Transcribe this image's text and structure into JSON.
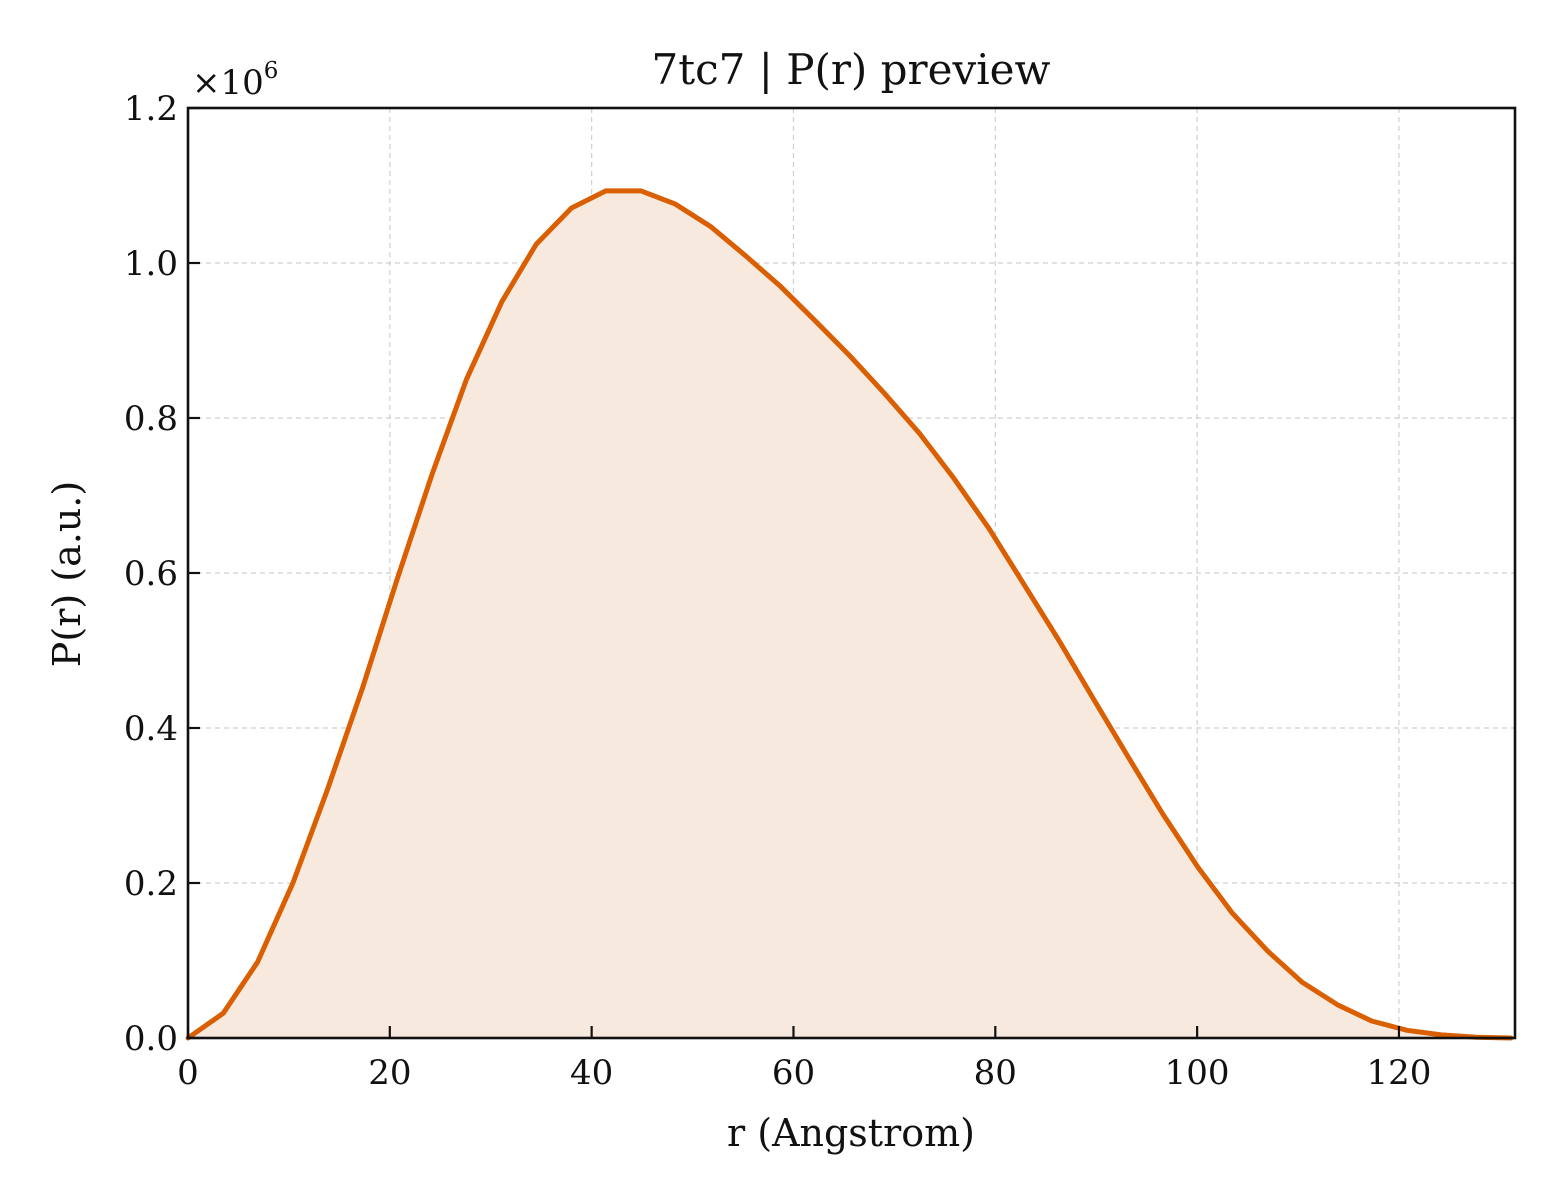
{
  "chart_data": {
    "type": "area",
    "title": "7tc7 | P(r) preview",
    "xlabel": "r (Angstrom)",
    "ylabel": "P(r) (a.u.)",
    "y_multiplier_label": "×10",
    "y_multiplier_exponent": "6",
    "xlim": [
      0,
      131.5
    ],
    "ylim": [
      0,
      1.2
    ],
    "x_ticks": [
      0,
      20,
      40,
      60,
      80,
      100,
      120
    ],
    "x_tick_labels": [
      "0",
      "20",
      "40",
      "60",
      "80",
      "100",
      "120"
    ],
    "y_ticks": [
      0,
      0.2,
      0.4,
      0.6,
      0.8,
      1.0,
      1.2
    ],
    "y_tick_labels": [
      "0.0",
      "0.2",
      "0.4",
      "0.6",
      "0.8",
      "1.0",
      "1.2"
    ],
    "grid": true,
    "colors": {
      "line": "#d95f02",
      "fill": "#f8e9df",
      "axis": "#111111",
      "grid": "#cfcfcf"
    },
    "series": [
      {
        "x": [
          0,
          3.5,
          6.9,
          10.4,
          13.8,
          17.3,
          20.7,
          24.2,
          27.6,
          31.1,
          34.5,
          38.0,
          41.4,
          44.9,
          48.3,
          51.8,
          55.2,
          58.7,
          62.1,
          65.6,
          69.0,
          72.5,
          75.9,
          79.4,
          82.8,
          86.3,
          89.7,
          93.2,
          96.6,
          100.1,
          103.5,
          107.0,
          110.4,
          113.9,
          117.3,
          120.8,
          124.2,
          127.7,
          131.1
        ],
        "y": [
          0.0,
          0.032,
          0.098,
          0.2,
          0.32,
          0.452,
          0.591,
          0.728,
          0.85,
          0.95,
          1.024,
          1.071,
          1.093,
          1.093,
          1.076,
          1.047,
          1.01,
          0.97,
          0.926,
          0.88,
          0.832,
          0.78,
          0.722,
          0.657,
          0.586,
          0.513,
          0.438,
          0.362,
          0.289,
          0.22,
          0.161,
          0.112,
          0.072,
          0.043,
          0.022,
          0.01,
          0.004,
          0.001,
          0.0
        ]
      }
    ]
  }
}
